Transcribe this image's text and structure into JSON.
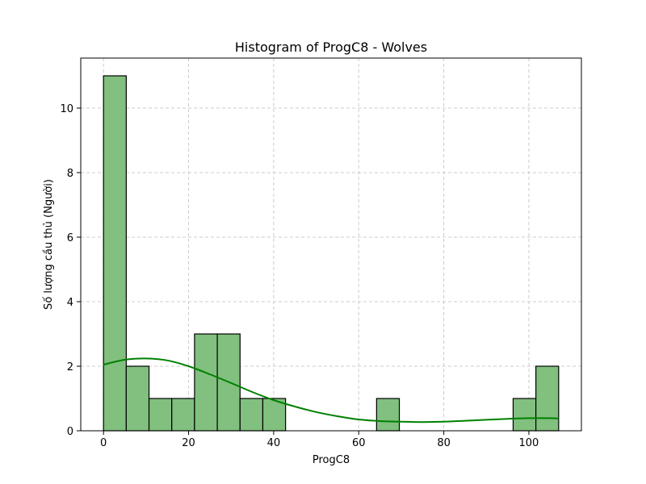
{
  "chart_data": {
    "type": "bar",
    "title": "Histogram of ProgC8 - Wolves",
    "xlabel": "ProgC8",
    "ylabel": "Số lượng cầu thủ (Người)",
    "xlim": [
      -5.35,
      112.35
    ],
    "ylim": [
      0,
      11.55
    ],
    "xticks": [
      0,
      20,
      40,
      60,
      80,
      100
    ],
    "yticks": [
      0,
      2,
      4,
      6,
      8,
      10
    ],
    "bin_edges": [
      0,
      5.35,
      10.7,
      16.05,
      21.4,
      26.75,
      32.1,
      37.45,
      42.8,
      48.15,
      53.5,
      58.85,
      64.2,
      69.55,
      74.9,
      80.25,
      85.6,
      90.95,
      96.3,
      101.65,
      107.0
    ],
    "counts": [
      11,
      2,
      1,
      1,
      3,
      3,
      1,
      1,
      0,
      0,
      0,
      0,
      1,
      0,
      0,
      0,
      0,
      0,
      1,
      2
    ],
    "kde": {
      "x": [
        0,
        5,
        10,
        15,
        20,
        25,
        30,
        35,
        40,
        45,
        50,
        55,
        60,
        65,
        70,
        75,
        80,
        85,
        90,
        95,
        100,
        105,
        107
      ],
      "y": [
        2.05,
        2.2,
        2.24,
        2.18,
        2.0,
        1.75,
        1.48,
        1.2,
        0.95,
        0.75,
        0.58,
        0.45,
        0.35,
        0.3,
        0.28,
        0.27,
        0.28,
        0.31,
        0.34,
        0.37,
        0.39,
        0.39,
        0.38
      ]
    },
    "grid": true,
    "colors": {
      "bar_fill": "#81c07e",
      "bar_edge": "#000000",
      "kde_line": "#008000",
      "grid": "#cccccc"
    }
  }
}
